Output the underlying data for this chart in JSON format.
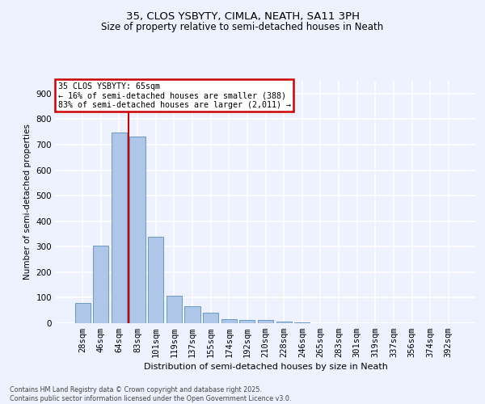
{
  "title1": "35, CLOS YSBYTY, CIMLA, NEATH, SA11 3PH",
  "title2": "Size of property relative to semi-detached houses in Neath",
  "xlabel": "Distribution of semi-detached houses by size in Neath",
  "ylabel": "Number of semi-detached properties",
  "bar_labels": [
    "28sqm",
    "46sqm",
    "64sqm",
    "83sqm",
    "101sqm",
    "119sqm",
    "137sqm",
    "155sqm",
    "174sqm",
    "192sqm",
    "210sqm",
    "228sqm",
    "246sqm",
    "265sqm",
    "283sqm",
    "301sqm",
    "319sqm",
    "337sqm",
    "356sqm",
    "374sqm",
    "392sqm"
  ],
  "bar_values": [
    80,
    305,
    747,
    730,
    340,
    108,
    68,
    40,
    15,
    12,
    12,
    5,
    3,
    0,
    0,
    0,
    0,
    0,
    0,
    0,
    0
  ],
  "bar_color": "#aec6e8",
  "bar_edge_color": "#5a8fc0",
  "vline_x_index": 2,
  "vline_color": "#cc0000",
  "annotation_title": "35 CLOS YSBYTY: 65sqm",
  "annotation_line1": "← 16% of semi-detached houses are smaller (388)",
  "annotation_line2": "83% of semi-detached houses are larger (2,011) →",
  "annotation_box_color": "#cc0000",
  "ylim": [
    0,
    950
  ],
  "yticks": [
    0,
    100,
    200,
    300,
    400,
    500,
    600,
    700,
    800,
    900
  ],
  "background_color": "#eef2ff",
  "grid_color": "#ffffff",
  "footer": "Contains HM Land Registry data © Crown copyright and database right 2025.\nContains public sector information licensed under the Open Government Licence v3.0."
}
